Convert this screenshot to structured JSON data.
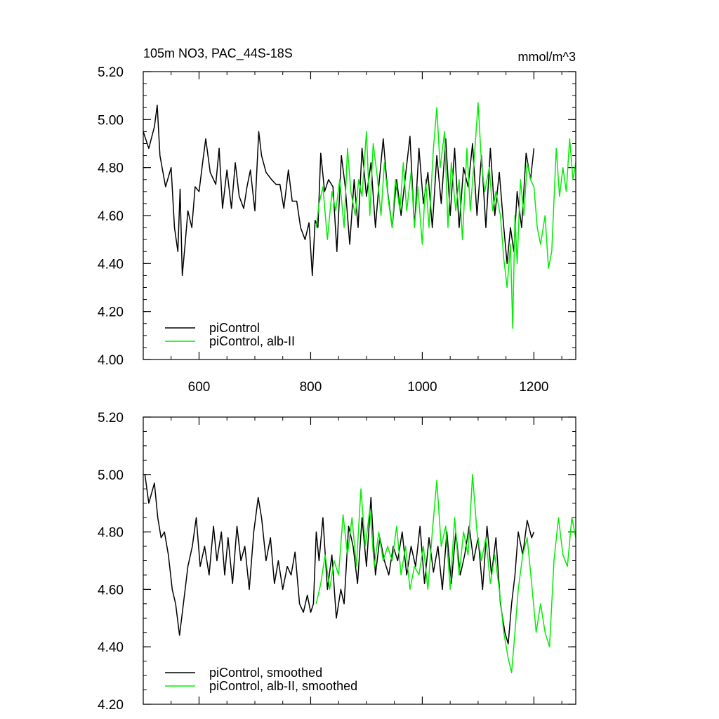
{
  "figure": {
    "title": "105m NO3, PAC_44S-18S",
    "units": "mmol/m^3"
  },
  "chart_data": [
    {
      "type": "line",
      "panel": "top",
      "xlim": [
        500,
        1275
      ],
      "ylim": [
        4.0,
        5.2
      ],
      "xticks": [
        600,
        800,
        1000,
        1200
      ],
      "xtick_labels": [
        "600",
        "800",
        "1000",
        "1200"
      ],
      "yticks": [
        4.0,
        4.2,
        4.4,
        4.6,
        4.8,
        5.0,
        5.2
      ],
      "ytick_labels": [
        "4.00",
        "4.20",
        "4.40",
        "4.60",
        "4.80",
        "5.00",
        "5.20"
      ],
      "legend_position": "bottom-left",
      "series": [
        {
          "name": "piControl",
          "color": "#000000",
          "x": [
            500,
            510,
            520,
            525,
            530,
            540,
            550,
            556,
            562,
            566,
            570,
            575,
            580,
            587,
            593,
            600,
            607,
            612,
            620,
            630,
            636,
            642,
            650,
            658,
            665,
            672,
            680,
            686,
            692,
            700,
            707,
            712,
            720,
            730,
            738,
            745,
            752,
            760,
            767,
            775,
            782,
            790,
            797,
            803,
            808,
            813,
            818,
            825,
            832,
            840,
            847,
            855,
            862,
            870,
            878,
            885,
            892,
            900,
            908,
            916,
            922,
            930,
            938,
            946,
            954,
            962,
            970,
            978,
            986,
            994,
            1002,
            1010,
            1018,
            1026,
            1034,
            1042,
            1050,
            1058,
            1066,
            1074,
            1082,
            1090,
            1098,
            1106,
            1114,
            1122,
            1130,
            1138,
            1146,
            1152,
            1158,
            1164,
            1170,
            1178,
            1186,
            1194,
            1200
          ],
          "y": [
            4.95,
            4.88,
            4.97,
            5.06,
            4.85,
            4.72,
            4.8,
            4.55,
            4.45,
            4.71,
            4.35,
            4.48,
            4.62,
            4.55,
            4.72,
            4.7,
            4.83,
            4.92,
            4.78,
            4.73,
            4.88,
            4.63,
            4.79,
            4.63,
            4.82,
            4.68,
            4.63,
            4.72,
            4.79,
            4.62,
            4.95,
            4.85,
            4.78,
            4.75,
            4.73,
            4.73,
            4.63,
            4.79,
            4.66,
            4.66,
            4.55,
            4.5,
            4.57,
            4.35,
            4.58,
            4.55,
            4.86,
            4.7,
            4.75,
            4.72,
            4.45,
            4.85,
            4.72,
            4.48,
            4.75,
            4.55,
            4.88,
            4.68,
            4.82,
            4.55,
            4.72,
            4.92,
            4.7,
            4.55,
            4.75,
            4.6,
            4.77,
            4.93,
            4.55,
            4.88,
            4.65,
            4.78,
            4.55,
            4.85,
            4.65,
            4.92,
            4.6,
            4.88,
            4.55,
            4.8,
            4.72,
            4.9,
            4.6,
            4.85,
            4.55,
            4.88,
            4.6,
            4.78,
            4.55,
            4.4,
            4.55,
            4.45,
            4.7,
            4.55,
            4.86,
            4.75,
            4.88
          ]
        },
        {
          "name": "piControl, alb-II",
          "color": "#00ee00",
          "x": [
            810,
            815,
            822,
            830,
            838,
            845,
            852,
            860,
            866,
            872,
            880,
            886,
            892,
            900,
            906,
            912,
            920,
            926,
            932,
            940,
            946,
            952,
            960,
            966,
            972,
            980,
            986,
            992,
            1000,
            1006,
            1012,
            1020,
            1026,
            1032,
            1040,
            1046,
            1052,
            1060,
            1066,
            1072,
            1080,
            1086,
            1092,
            1100,
            1106,
            1112,
            1120,
            1126,
            1132,
            1140,
            1146,
            1152,
            1158,
            1162,
            1166,
            1170,
            1176,
            1182,
            1188,
            1194,
            1200,
            1206,
            1212,
            1220,
            1226,
            1232,
            1240,
            1246,
            1252,
            1258,
            1264,
            1270,
            1275
          ],
          "y": [
            4.55,
            4.65,
            4.72,
            4.5,
            4.7,
            4.62,
            4.75,
            4.55,
            4.88,
            4.7,
            4.6,
            4.75,
            4.68,
            4.95,
            4.6,
            4.9,
            4.75,
            4.6,
            4.82,
            4.65,
            4.55,
            4.75,
            4.62,
            4.82,
            4.62,
            4.78,
            4.55,
            4.72,
            4.48,
            4.75,
            4.55,
            4.88,
            5.05,
            4.8,
            4.95,
            4.55,
            4.82,
            4.62,
            4.75,
            4.5,
            4.88,
            4.62,
            4.8,
            5.07,
            4.82,
            4.7,
            4.8,
            4.62,
            4.7,
            4.6,
            4.42,
            4.3,
            4.48,
            4.13,
            4.6,
            4.4,
            4.75,
            4.6,
            4.82,
            4.75,
            4.72,
            4.55,
            4.48,
            4.6,
            4.38,
            4.45,
            4.88,
            4.68,
            4.8,
            4.7,
            4.92,
            4.75,
            4.82
          ]
        }
      ]
    },
    {
      "type": "line",
      "panel": "bottom",
      "xlim": [
        500,
        1275
      ],
      "ylim": [
        4.2,
        5.2
      ],
      "xticks": [
        600,
        800,
        1000,
        1200
      ],
      "yticks": [
        4.2,
        4.4,
        4.6,
        4.8,
        5.0,
        5.2
      ],
      "ytick_labels": [
        "4.20",
        "4.40",
        "4.60",
        "4.80",
        "5.00",
        "5.20"
      ],
      "legend_position": "bottom-left",
      "series": [
        {
          "name": "piControl, smoothed",
          "color": "#000000",
          "x": [
            503,
            510,
            520,
            526,
            532,
            538,
            545,
            552,
            558,
            565,
            572,
            580,
            588,
            595,
            602,
            610,
            618,
            626,
            632,
            640,
            646,
            652,
            660,
            668,
            675,
            682,
            690,
            698,
            706,
            712,
            720,
            728,
            735,
            742,
            750,
            758,
            765,
            772,
            780,
            787,
            794,
            800,
            805,
            810,
            815,
            822,
            830,
            838,
            846,
            854,
            860,
            868,
            876,
            884,
            892,
            900,
            908,
            916,
            924,
            932,
            940,
            948,
            956,
            964,
            972,
            980,
            988,
            996,
            1004,
            1012,
            1020,
            1028,
            1036,
            1044,
            1052,
            1060,
            1068,
            1076,
            1084,
            1092,
            1100,
            1108,
            1116,
            1124,
            1132,
            1140,
            1148,
            1154,
            1160,
            1166,
            1172,
            1180,
            1188,
            1196,
            1200
          ],
          "y": [
            5.0,
            4.9,
            4.97,
            4.85,
            4.78,
            4.8,
            4.72,
            4.6,
            4.55,
            4.44,
            4.55,
            4.68,
            4.75,
            4.85,
            4.68,
            4.75,
            4.65,
            4.82,
            4.7,
            4.8,
            4.65,
            4.78,
            4.62,
            4.82,
            4.7,
            4.75,
            4.6,
            4.8,
            4.92,
            4.85,
            4.7,
            4.78,
            4.62,
            4.7,
            4.6,
            4.68,
            4.65,
            4.73,
            4.55,
            4.52,
            4.58,
            4.52,
            4.55,
            4.8,
            4.7,
            4.85,
            4.6,
            4.72,
            4.5,
            4.6,
            4.55,
            4.82,
            4.75,
            4.62,
            4.85,
            4.68,
            4.92,
            4.65,
            4.78,
            4.7,
            4.65,
            4.75,
            4.7,
            4.8,
            4.65,
            4.75,
            4.68,
            4.82,
            4.62,
            4.78,
            4.66,
            4.75,
            4.6,
            4.8,
            4.62,
            4.8,
            4.65,
            4.72,
            4.82,
            4.7,
            4.78,
            4.6,
            4.82,
            4.65,
            4.78,
            4.55,
            4.45,
            4.41,
            4.55,
            4.65,
            4.8,
            4.72,
            4.84,
            4.78,
            4.8
          ]
        },
        {
          "name": "piControl, alb-II, smoothed",
          "color": "#00ee00",
          "x": [
            810,
            818,
            826,
            834,
            842,
            850,
            858,
            866,
            874,
            882,
            890,
            898,
            906,
            914,
            922,
            930,
            938,
            946,
            954,
            962,
            970,
            978,
            986,
            994,
            1002,
            1010,
            1018,
            1026,
            1034,
            1042,
            1050,
            1058,
            1066,
            1074,
            1082,
            1090,
            1098,
            1106,
            1114,
            1122,
            1130,
            1138,
            1146,
            1154,
            1160,
            1166,
            1172,
            1180,
            1188,
            1196,
            1204,
            1212,
            1220,
            1228,
            1236,
            1244,
            1252,
            1260,
            1268,
            1275
          ],
          "y": [
            4.55,
            4.62,
            4.72,
            4.6,
            4.7,
            4.65,
            4.86,
            4.72,
            4.85,
            4.68,
            4.95,
            4.75,
            4.88,
            4.68,
            4.8,
            4.7,
            4.75,
            4.7,
            4.82,
            4.65,
            4.75,
            4.6,
            4.68,
            4.65,
            4.75,
            4.6,
            4.8,
            4.98,
            4.75,
            4.82,
            4.6,
            4.85,
            4.65,
            4.8,
            4.72,
            5.0,
            4.8,
            4.7,
            4.78,
            4.62,
            4.72,
            4.6,
            4.45,
            4.36,
            4.31,
            4.45,
            4.6,
            4.72,
            4.78,
            4.62,
            4.45,
            4.55,
            4.45,
            4.4,
            4.7,
            4.85,
            4.72,
            4.68,
            4.85,
            4.78
          ]
        }
      ]
    }
  ]
}
